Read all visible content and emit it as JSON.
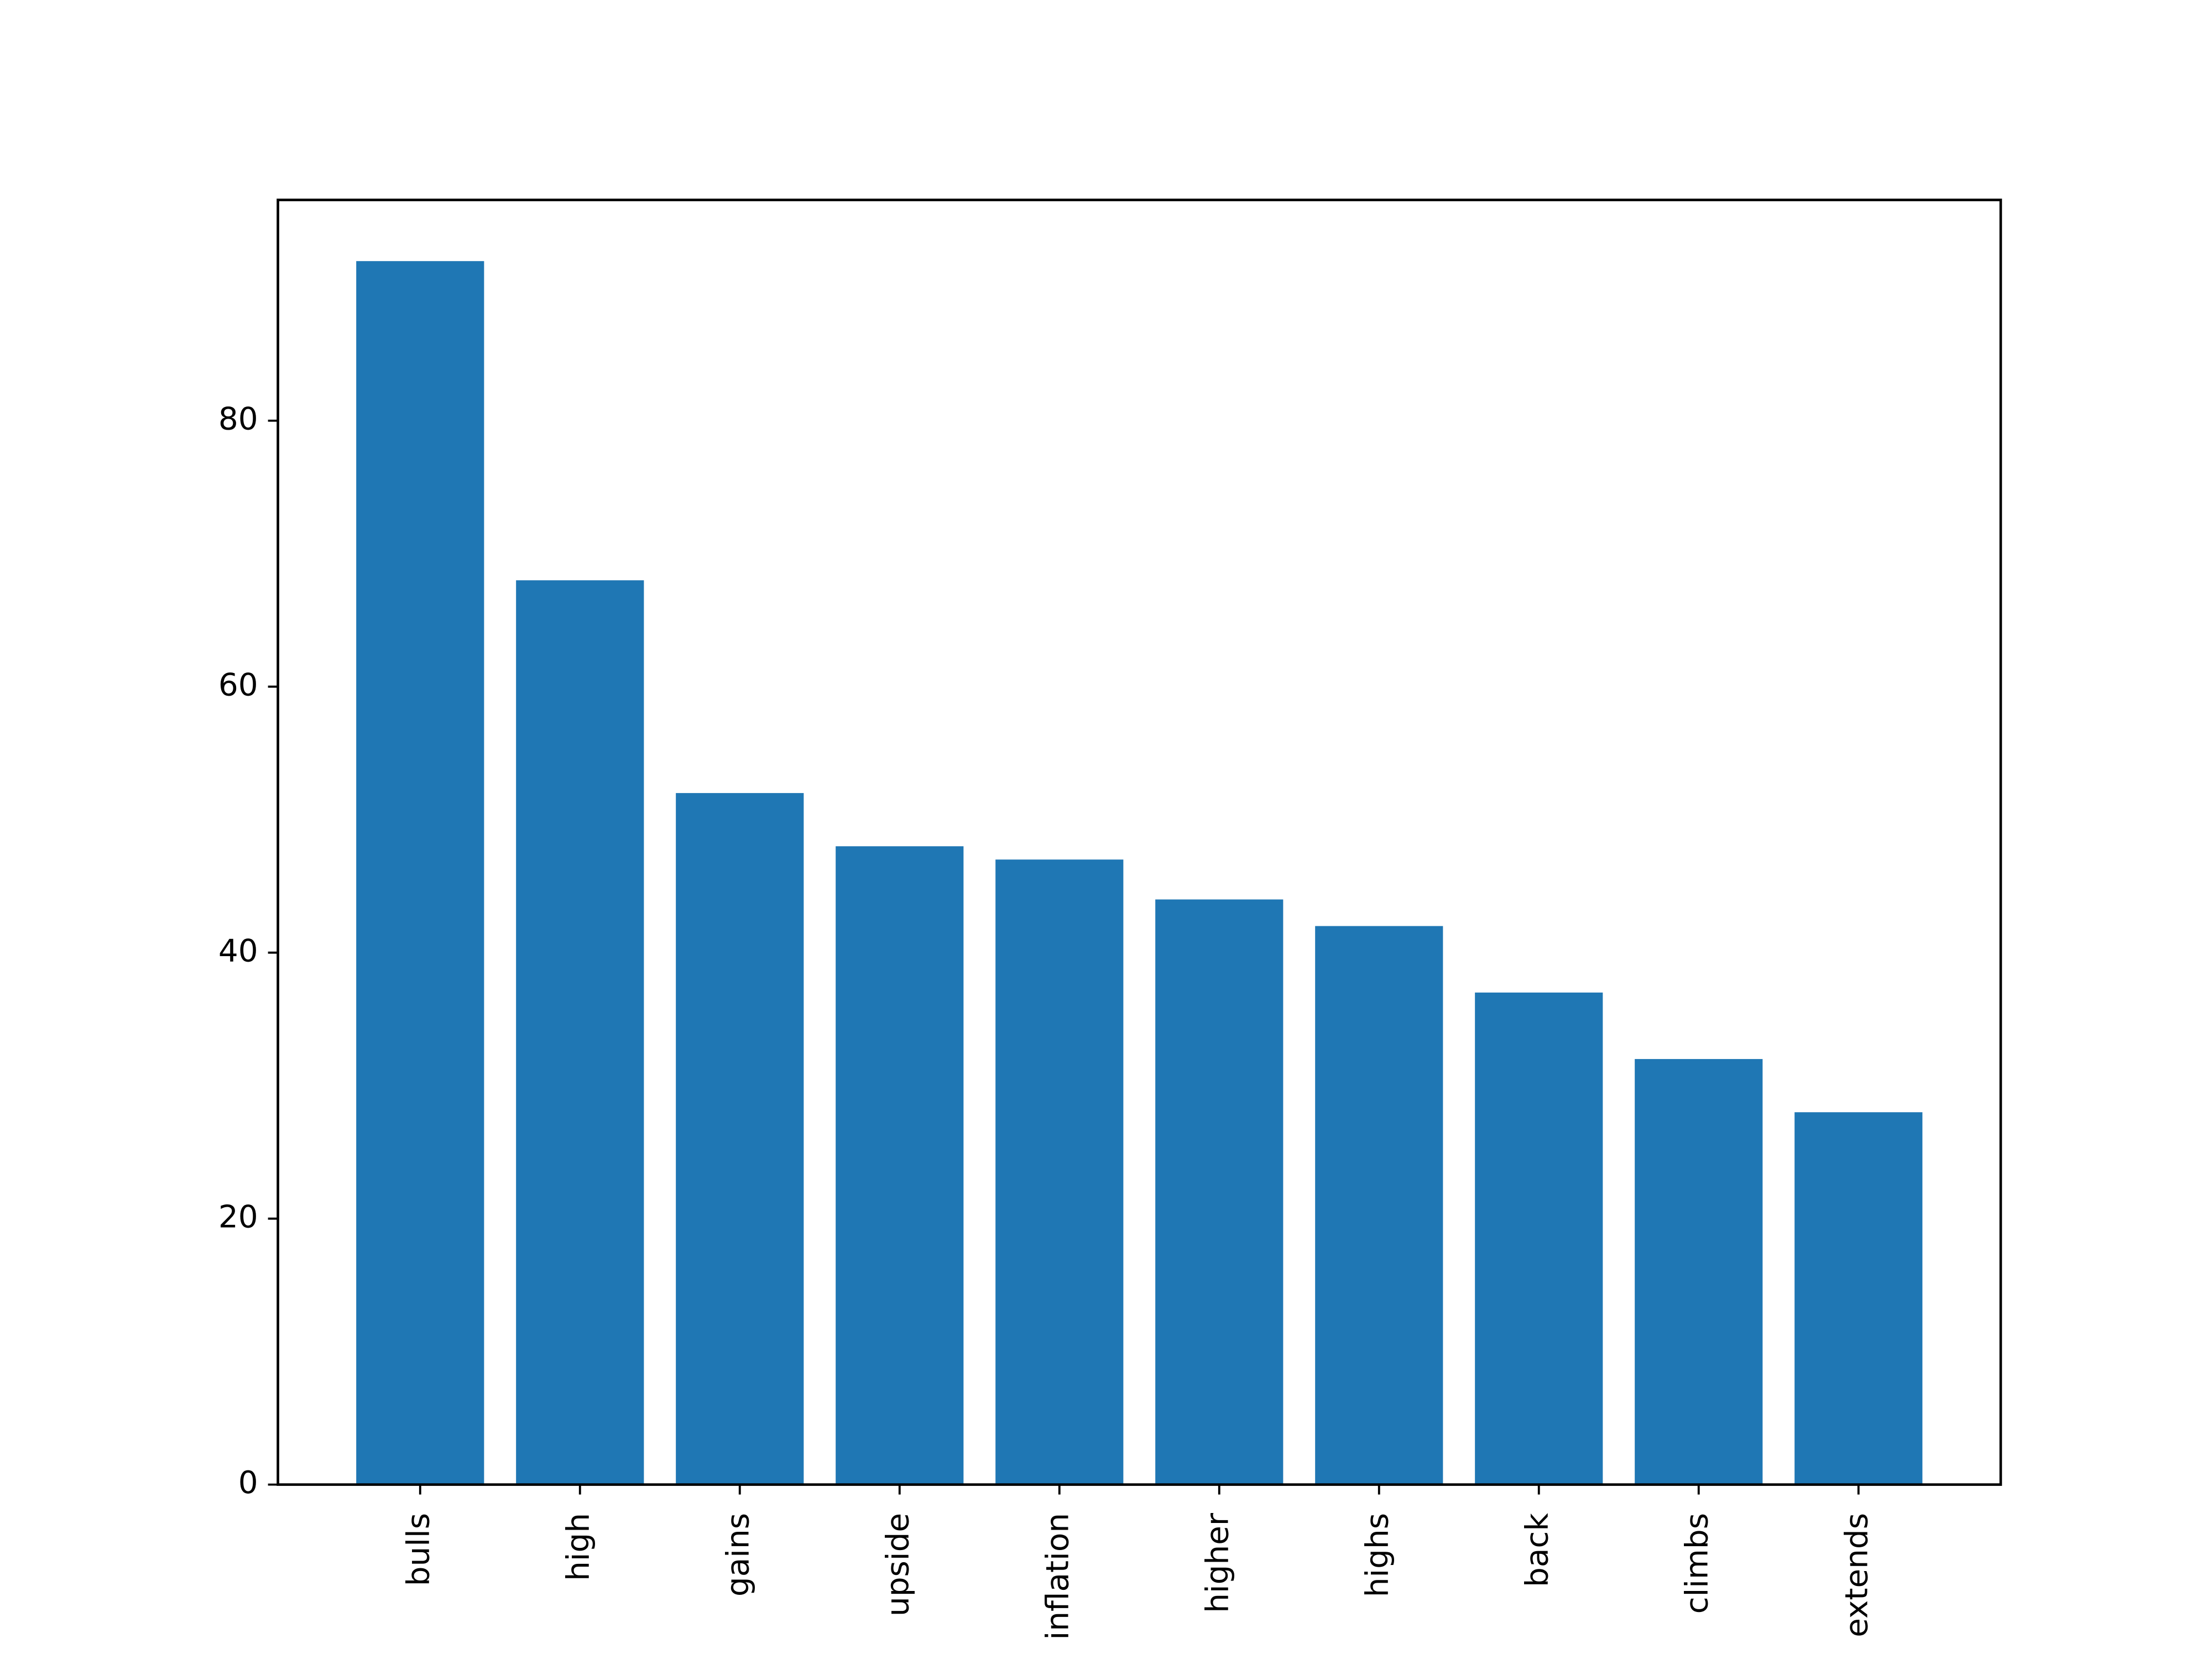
{
  "chart_data": {
    "type": "bar",
    "categories": [
      "bulls",
      "high",
      "gains",
      "upside",
      "inflation",
      "higher",
      "highs",
      "back",
      "climbs",
      "extends"
    ],
    "values": [
      92,
      68,
      52,
      48,
      47,
      44,
      42,
      37,
      32,
      28
    ],
    "color": "#1f77b4",
    "ylim": [
      0,
      96.6
    ],
    "yticks": [
      0,
      20,
      40,
      60,
      80
    ],
    "grid": false
  }
}
